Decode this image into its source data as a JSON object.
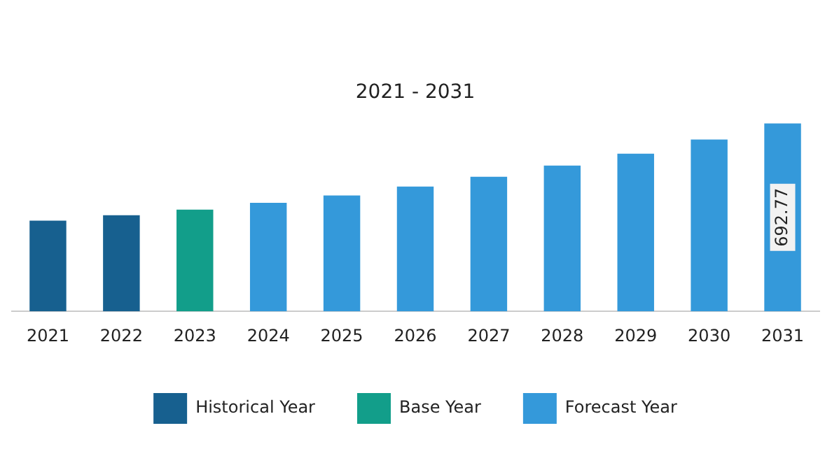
{
  "chart_data": {
    "type": "bar",
    "title": "2021 - 2031",
    "tick_labels": "x",
    "legend": "bottom",
    "grid": false,
    "categories": [
      "2021",
      "2022",
      "2023",
      "2024",
      "2025",
      "2026",
      "2027",
      "2028",
      "2029",
      "2030",
      "2031"
    ],
    "series": [
      {
        "name": "Historical Year",
        "color": "#17608f",
        "values": [
          334,
          354,
          null,
          null,
          null,
          null,
          null,
          null,
          null,
          null,
          null
        ]
      },
      {
        "name": "Base Year",
        "color": "#129e8a",
        "values": [
          null,
          null,
          375,
          null,
          null,
          null,
          null,
          null,
          null,
          null,
          null
        ]
      },
      {
        "name": "Forecast Year",
        "color": "#3499da",
        "values": [
          null,
          null,
          null,
          400,
          427,
          460,
          496,
          537,
          581,
          633,
          692.77
        ],
        "value_labels": [
          null,
          null,
          null,
          null,
          null,
          null,
          null,
          null,
          null,
          null,
          "692.77"
        ]
      }
    ]
  }
}
